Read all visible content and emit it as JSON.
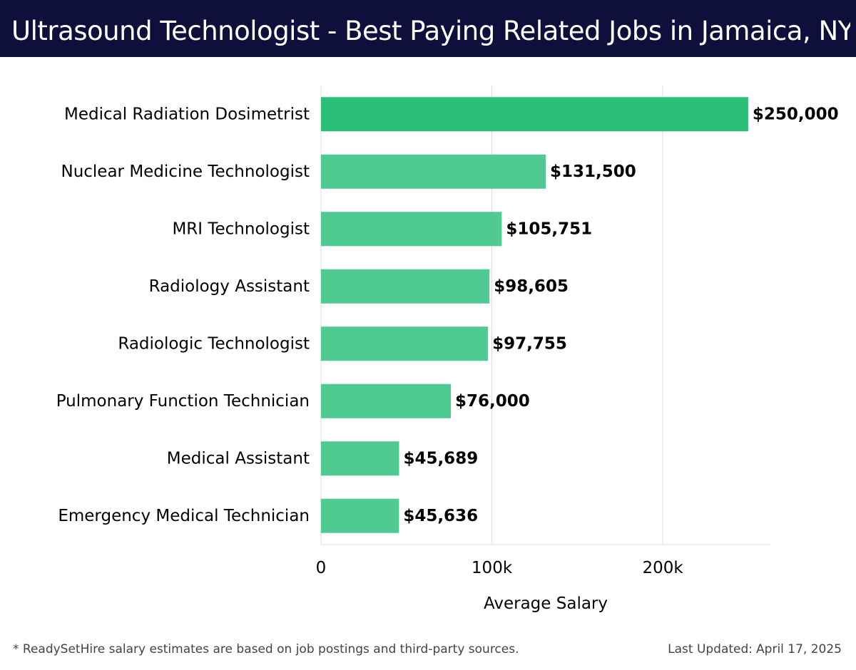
{
  "header": {
    "title": "Ultrasound Technologist - Best Paying Related Jobs in Jamaica, NY"
  },
  "colors": {
    "header_bg": "#0e0f3a",
    "bar_top": "#2bbf77",
    "bar": "#4fca90",
    "grid": "#dddddd",
    "text": "#000000"
  },
  "chart_data": {
    "type": "bar",
    "orientation": "horizontal",
    "categories": [
      "Medical Radiation Dosimetrist",
      "Nuclear Medicine Technologist",
      "MRI Technologist",
      "Radiology Assistant",
      "Radiologic Technologist",
      "Pulmonary Function Technician",
      "Medical Assistant",
      "Emergency Medical Technician"
    ],
    "values": [
      250000,
      131500,
      105751,
      98605,
      97755,
      76000,
      45689,
      45636
    ],
    "data_labels": [
      "$250,000",
      "$131,500",
      "$105,751",
      "$98,605",
      "$97,755",
      "$76,000",
      "$45,689",
      "$45,636"
    ],
    "xlabel": "Average Salary",
    "ylabel": "",
    "xlim": [
      0,
      263000
    ],
    "x_ticks": [
      0,
      100000,
      200000
    ],
    "x_tick_labels": [
      "0",
      "100k",
      "200k"
    ],
    "grid": true
  },
  "footer": {
    "note": "* ReadySetHire salary estimates are based on job postings and third-party sources.",
    "updated_label": "Last Updated:",
    "updated_date": "April 17, 2025"
  }
}
